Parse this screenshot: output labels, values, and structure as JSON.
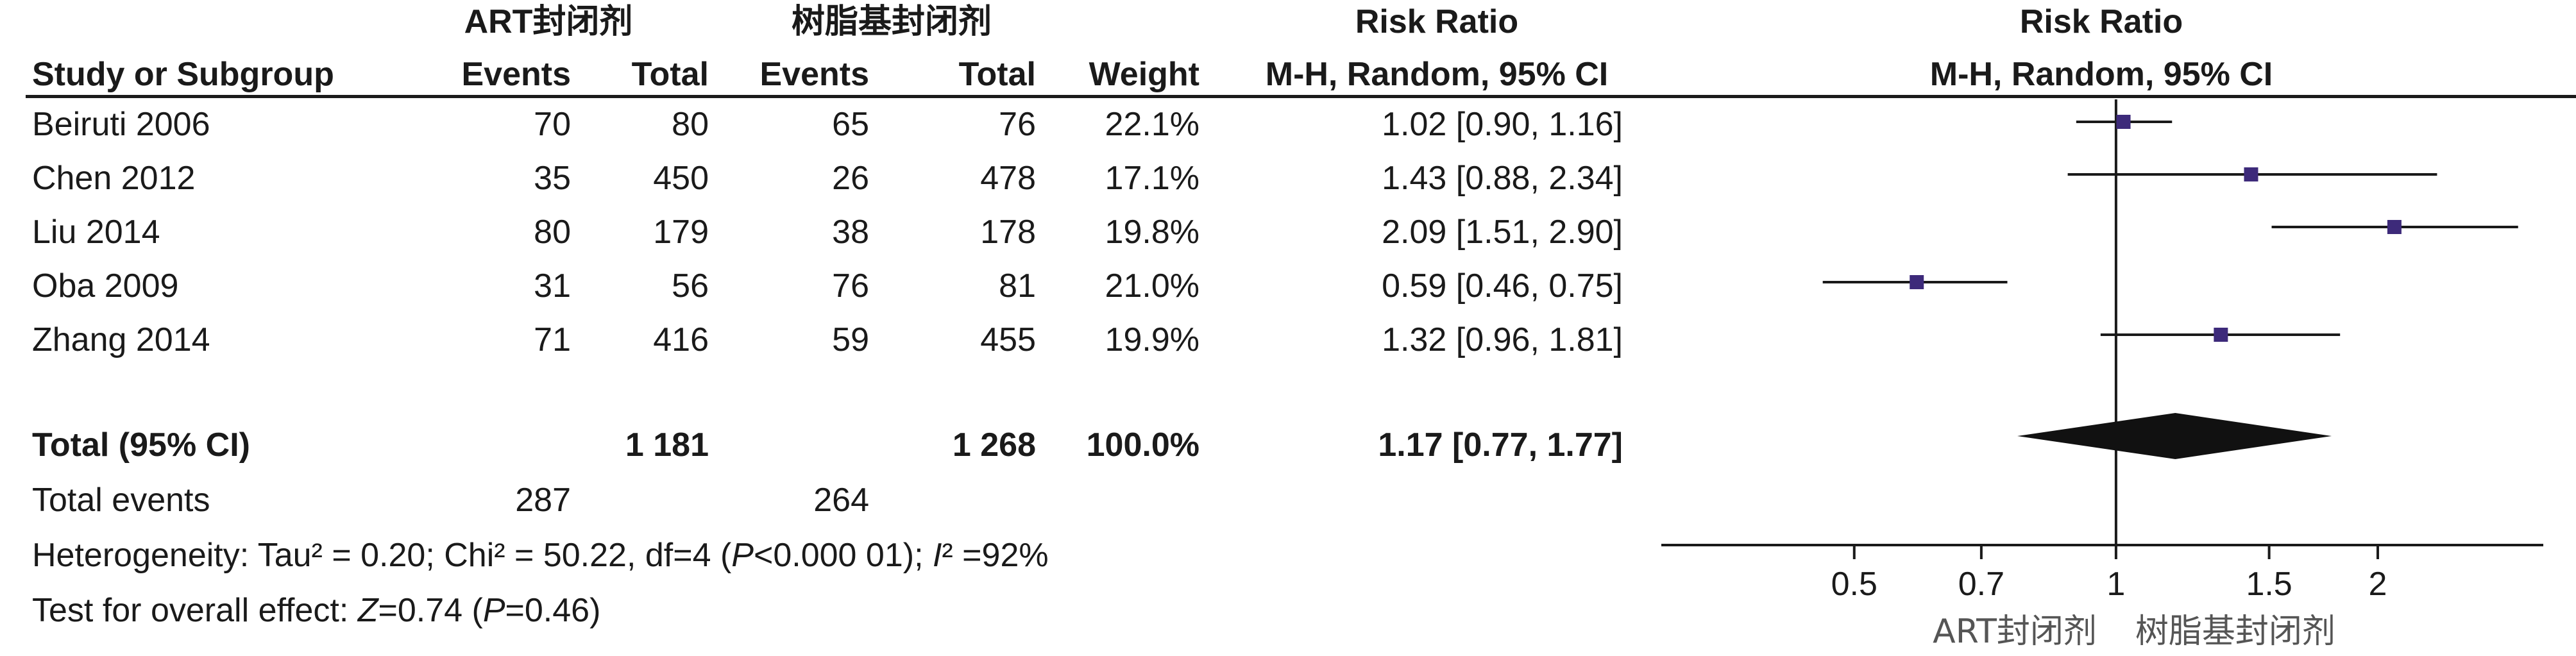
{
  "header": {
    "group1": "ART封闭剂",
    "group2": "树脂基封闭剂",
    "study_col": "Study or Subgroup",
    "events1": "Events",
    "total1": "Total",
    "events2": "Events",
    "total2": "Total",
    "weight": "Weight",
    "rr_title": "Risk Ratio",
    "rr_method": "M-H, Random, 95% CI",
    "plot_title": "Risk Ratio",
    "plot_method": "M-H, Random, 95% CI"
  },
  "rows": [
    {
      "study": "Beiruti 2006",
      "e1": "70",
      "t1": "80",
      "e2": "65",
      "t2": "76",
      "weight": "22.1%",
      "rr": "1.02 [0.90, 1.16]"
    },
    {
      "study": "Chen 2012",
      "e1": "35",
      "t1": "450",
      "e2": "26",
      "t2": "478",
      "weight": "17.1%",
      "rr": "1.43 [0.88, 2.34]"
    },
    {
      "study": "Liu 2014",
      "e1": "80",
      "t1": "179",
      "e2": "38",
      "t2": "178",
      "weight": "19.8%",
      "rr": "2.09 [1.51, 2.90]"
    },
    {
      "study": "Oba 2009",
      "e1": "31",
      "t1": "56",
      "e2": "76",
      "t2": "81",
      "weight": "21.0%",
      "rr": "0.59 [0.46, 0.75]"
    },
    {
      "study": "Zhang 2014",
      "e1": "71",
      "t1": "416",
      "e2": "59",
      "t2": "455",
      "weight": "19.9%",
      "rr": "1.32 [0.96, 1.81]"
    }
  ],
  "total": {
    "label": "Total (95% CI)",
    "t1": "1 181",
    "t2": "1 268",
    "weight": "100.0%",
    "rr": "1.17 [0.77, 1.77]"
  },
  "total_events": {
    "label": "Total events",
    "e1": "287",
    "e2": "264"
  },
  "heterogeneity": {
    "prefix": "Heterogeneity: Tau² = 0.20; Chi² = 50.22, df=4  (",
    "p_sym": "P",
    "p_val": "<0.000 01); ",
    "i_sym": "I",
    "i_val": "² =92%"
  },
  "overall": {
    "prefix": "Test for overall effect: ",
    "z_sym": "Z",
    "z_val": "=0.74  (",
    "p_sym": "P",
    "p_val": "=0.46)"
  },
  "chart_data": {
    "type": "forest",
    "scale": "log",
    "title": "Risk Ratio",
    "subtitle": "M-H, Random, 95% CI",
    "tick_labels": [
      "0.5",
      "0.7",
      "1",
      "1.5",
      "2"
    ],
    "ticks": [
      0.5,
      0.7,
      1,
      1.5,
      2
    ],
    "xlim": [
      0.3,
      3.1
    ],
    "null_value": 1,
    "favours_left": "ART封闭剂",
    "favours_right": "树脂基封闭剂",
    "studies": [
      {
        "name": "Beiruti 2006",
        "rr": 1.02,
        "lo": 0.9,
        "hi": 1.16,
        "weight": 22.1
      },
      {
        "name": "Chen 2012",
        "rr": 1.43,
        "lo": 0.88,
        "hi": 2.34,
        "weight": 17.1
      },
      {
        "name": "Liu 2014",
        "rr": 2.09,
        "lo": 1.51,
        "hi": 2.9,
        "weight": 19.8
      },
      {
        "name": "Oba 2009",
        "rr": 0.59,
        "lo": 0.46,
        "hi": 0.75,
        "weight": 21.0
      },
      {
        "name": "Zhang 2014",
        "rr": 1.32,
        "lo": 0.96,
        "hi": 1.81,
        "weight": 19.9
      }
    ],
    "pooled": {
      "rr": 1.17,
      "lo": 0.77,
      "hi": 1.77
    },
    "colors": {
      "marker": "#3d2a7a",
      "line": "#1a1a1a",
      "diamond": "#111111"
    }
  }
}
